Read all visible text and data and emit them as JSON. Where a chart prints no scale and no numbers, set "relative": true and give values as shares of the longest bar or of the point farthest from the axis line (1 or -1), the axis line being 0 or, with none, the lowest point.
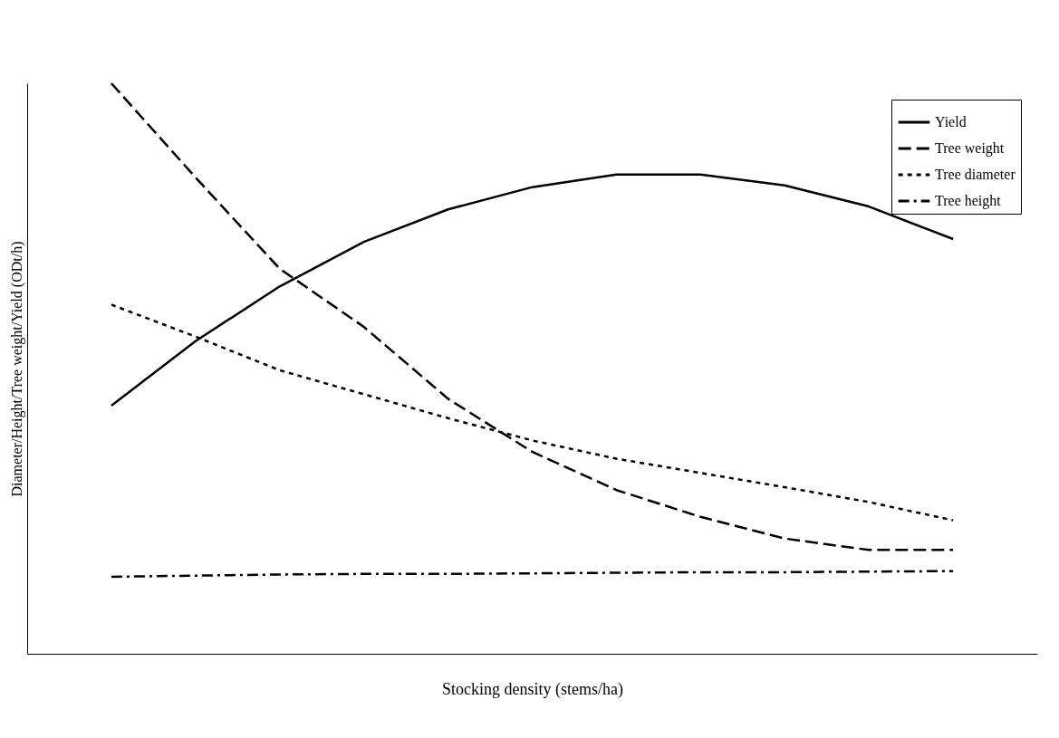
{
  "chart_data": {
    "type": "line",
    "relative": true,
    "xlabel": "Stocking density (stems/ha)",
    "ylabel": "Diameter/Height/Tree weight/Yield (ODt/h)",
    "categories": [
      null,
      null,
      null,
      null,
      null,
      null,
      null,
      null,
      null,
      null,
      null
    ],
    "series": [
      {
        "name": "Yield",
        "color": "#000000",
        "line_style": "solid",
        "values": [
          0.435,
          0.548,
          0.644,
          0.722,
          0.779,
          0.818,
          0.84,
          0.84,
          0.821,
          0.784,
          0.727
        ]
      },
      {
        "name": "Tree weight",
        "color": "#000000",
        "line_style": "dashed",
        "values": [
          1.0,
          0.835,
          0.675,
          0.573,
          0.447,
          0.354,
          0.287,
          0.24,
          0.202,
          0.182,
          0.182
        ]
      },
      {
        "name": "Tree diameter",
        "color": "#000000",
        "line_style": "dotted",
        "values": [
          0.612,
          0.556,
          0.497,
          0.455,
          0.413,
          0.374,
          0.342,
          0.317,
          0.292,
          0.266,
          0.234
        ]
      },
      {
        "name": "Tree height",
        "color": "#000000",
        "line_style": "dashdot",
        "values": [
          0.135,
          0.137,
          0.139,
          0.14,
          0.14,
          0.141,
          0.142,
          0.143,
          0.143,
          0.144,
          0.145
        ]
      }
    ],
    "legend": "top right",
    "grid": false,
    "marker": "none"
  }
}
